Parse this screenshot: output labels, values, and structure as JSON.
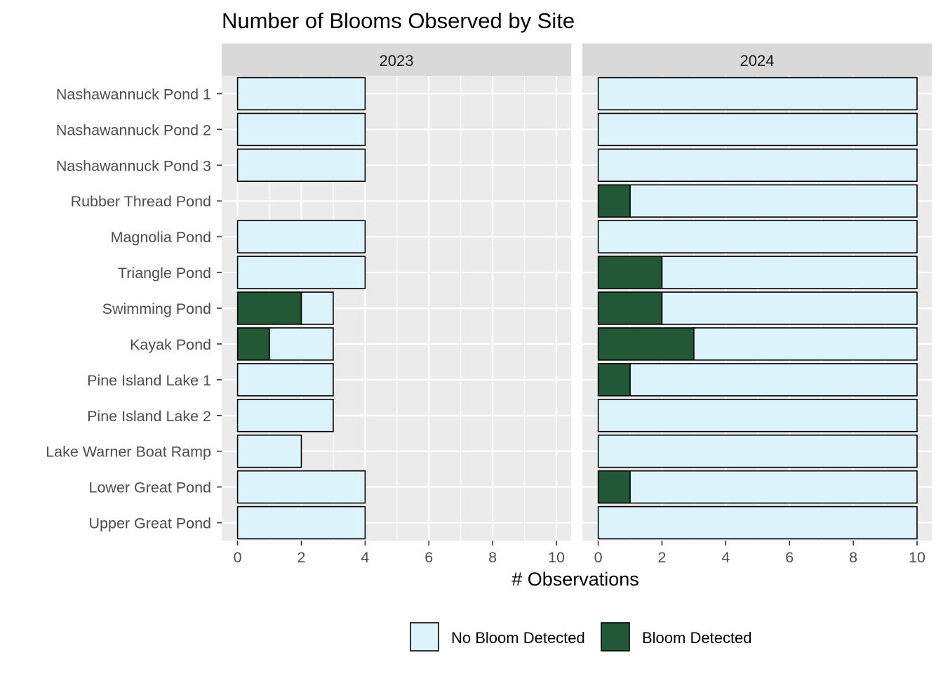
{
  "chart_data": {
    "type": "bar",
    "orientation": "horizontal",
    "stacked": true,
    "title": "Number of Blooms Observed by Site",
    "xlabel": "# Observations",
    "ylabel": "",
    "xlim": [
      0,
      10
    ],
    "xticks": [
      0,
      2,
      4,
      6,
      8,
      10
    ],
    "grid": true,
    "legend_position": "bottom",
    "categories": [
      "Nashawannuck Pond 1",
      "Nashawannuck Pond 2",
      "Nashawannuck Pond 3",
      "Rubber Thread Pond",
      "Magnolia Pond",
      "Triangle Pond",
      "Swimming Pond",
      "Kayak Pond",
      "Pine Island Lake 1",
      "Pine Island Lake 2",
      "Lake Warner Boat Ramp",
      "Lower Great Pond",
      "Upper Great Pond"
    ],
    "legend": [
      {
        "label": "No Bloom Detected",
        "color": "#ddf3fc"
      },
      {
        "label": "Bloom Detected",
        "color": "#225835"
      }
    ],
    "panels": [
      {
        "label": "2023",
        "series": [
          {
            "name": "Bloom Detected",
            "color": "#225835",
            "values": [
              0,
              0,
              0,
              0,
              0,
              0,
              2,
              1,
              0,
              0,
              0,
              0,
              0
            ]
          },
          {
            "name": "No Bloom Detected",
            "color": "#ddf3fc",
            "values": [
              4,
              4,
              4,
              0,
              4,
              4,
              1,
              2,
              3,
              3,
              2,
              4,
              4
            ]
          }
        ]
      },
      {
        "label": "2024",
        "series": [
          {
            "name": "Bloom Detected",
            "color": "#225835",
            "values": [
              0,
              0,
              0,
              1,
              0,
              2,
              2,
              3,
              1,
              0,
              0,
              1,
              0
            ]
          },
          {
            "name": "No Bloom Detected",
            "color": "#ddf3fc",
            "values": [
              10,
              10,
              10,
              9,
              10,
              8,
              8,
              7,
              9,
              10,
              10,
              9,
              10
            ]
          }
        ]
      }
    ]
  }
}
